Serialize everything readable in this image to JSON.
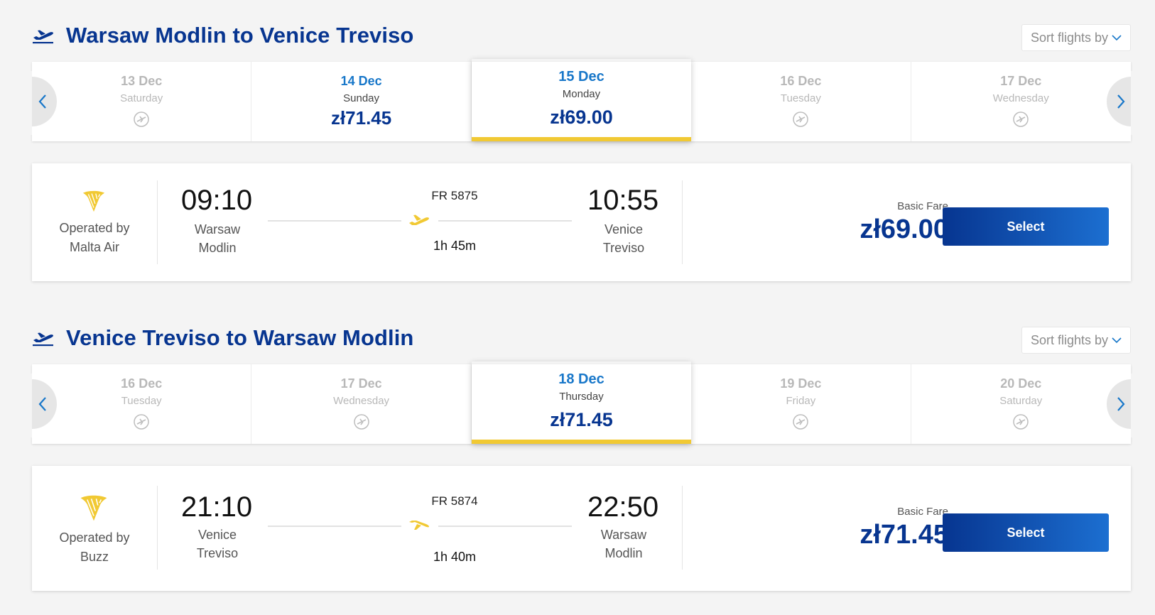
{
  "colors": {
    "brand_blue": "#073590",
    "accent_yellow": "#f1c933",
    "link_blue": "#1877c9"
  },
  "outbound": {
    "title": "Warsaw Modlin to Venice Treviso",
    "sort_label": "Sort flights by",
    "dates": [
      {
        "date": "13 Dec",
        "day": "Saturday",
        "price": null,
        "icon": "no-flights-icon"
      },
      {
        "date": "14 Dec",
        "day": "Sunday",
        "price": "zł71.45"
      },
      {
        "date": "15 Dec",
        "day": "Monday",
        "price": "zł69.00",
        "selected": true
      },
      {
        "date": "16 Dec",
        "day": "Tuesday",
        "price": null,
        "icon": "no-flights-icon"
      },
      {
        "date": "17 Dec",
        "day": "Wednesday",
        "price": null,
        "icon": "no-flights-icon"
      }
    ],
    "flight": {
      "operator_label": "Operated by",
      "operator": "Malta Air",
      "dep_time": "09:10",
      "dep_city_1": "Warsaw",
      "dep_city_2": "Modlin",
      "flight_no": "FR 5875",
      "duration": "1h 45m",
      "arr_time": "10:55",
      "arr_city_1": "Venice",
      "arr_city_2": "Treviso",
      "fare_label": "Basic Fare",
      "price": "zł69.00",
      "select_label": "Select"
    }
  },
  "return": {
    "title": "Venice Treviso to Warsaw Modlin",
    "sort_label": "Sort flights by",
    "dates": [
      {
        "date": "16 Dec",
        "day": "Tuesday",
        "price": null,
        "icon": "no-flights-icon"
      },
      {
        "date": "17 Dec",
        "day": "Wednesday",
        "price": null,
        "icon": "no-flights-icon"
      },
      {
        "date": "18 Dec",
        "day": "Thursday",
        "price": "zł71.45",
        "selected": true
      },
      {
        "date": "19 Dec",
        "day": "Friday",
        "price": null,
        "icon": "no-flights-icon"
      },
      {
        "date": "20 Dec",
        "day": "Saturday",
        "price": null,
        "icon": "no-flights-icon"
      }
    ],
    "flight": {
      "operator_label": "Operated by",
      "operator": "Buzz",
      "dep_time": "21:10",
      "dep_city_1": "Venice",
      "dep_city_2": "Treviso",
      "flight_no": "FR 5874",
      "duration": "1h 40m",
      "arr_time": "22:50",
      "arr_city_1": "Warsaw",
      "arr_city_2": "Modlin",
      "fare_label": "Basic Fare",
      "price": "zł71.45",
      "select_label": "Select"
    }
  }
}
